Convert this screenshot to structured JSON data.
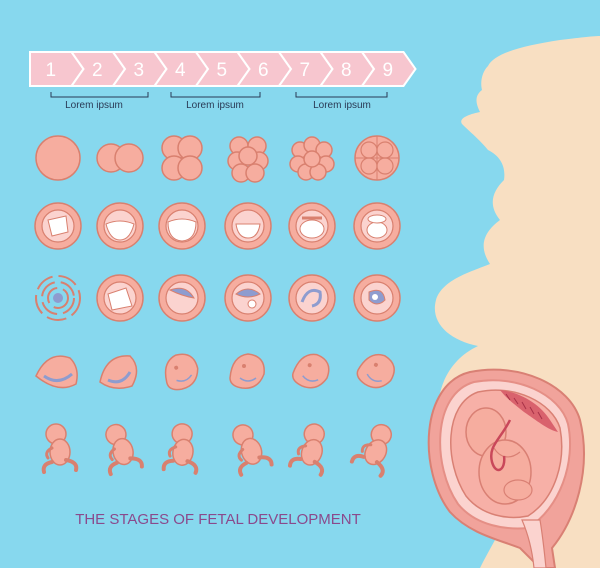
{
  "title": "THE STAGES OF FETAL DEVELOPMENT",
  "months": [
    "1",
    "2",
    "3",
    "4",
    "5",
    "6",
    "7",
    "8",
    "9"
  ],
  "trimester_labels": [
    "Lorem ipsum",
    "Lorem ipsum",
    "Lorem ipsum"
  ],
  "colors": {
    "background": "#87d8ee",
    "arrow": "#f7c6cf",
    "cell_fill": "#f6ad9f",
    "cell_stroke": "#d9806f",
    "silhouette": "#f8dfc2",
    "uterus_wall": "#f1a39b",
    "title": "#8a4a8c",
    "vein": "#8e9ccf"
  },
  "rows": [
    {
      "name": "cleavage-row",
      "stages": [
        "zygote-icon",
        "two-cell-icon",
        "four-cell-icon",
        "eight-cell-icon",
        "morula-icon",
        "sixteen-cell-icon"
      ]
    },
    {
      "name": "blastocyst-row",
      "stages": [
        "early-blastocyst-icon",
        "blastocyst-icon",
        "expanded-blastocyst-icon",
        "implanting-blastocyst-icon",
        "bilaminar-disc-icon",
        "amniotic-cavity-icon"
      ]
    },
    {
      "name": "gastrula-row",
      "stages": [
        "implantation-icon",
        "trophoblast-icon",
        "yolk-sac-icon",
        "embryonic-disc-icon",
        "folding-embryo-icon",
        "neural-tube-icon"
      ]
    },
    {
      "name": "embryo-row",
      "stages": [
        "embryo-week4-icon",
        "embryo-week5-icon",
        "embryo-week6-icon",
        "embryo-week7-icon",
        "embryo-week8-icon",
        "embryo-week9-icon"
      ]
    },
    {
      "name": "fetus-row",
      "stages": [
        "fetus-week10-icon",
        "fetus-week12-icon",
        "fetus-week16-icon",
        "fetus-week20-icon",
        "fetus-week24-icon",
        "fetus-week28-icon"
      ]
    }
  ]
}
